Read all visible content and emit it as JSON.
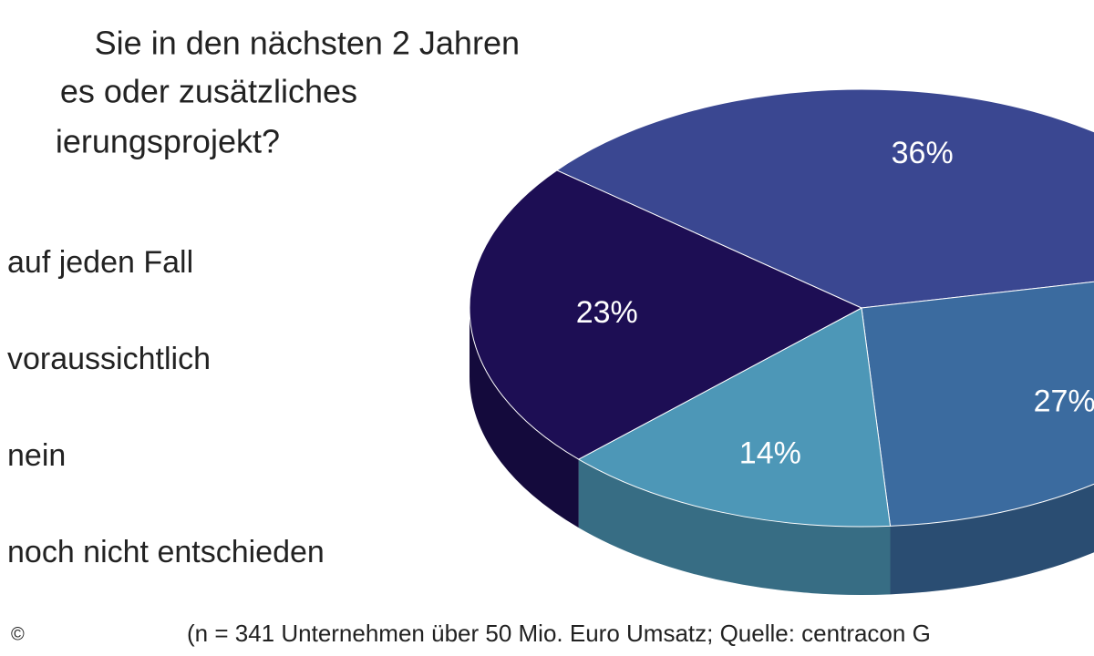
{
  "chart_data": {
    "type": "pie3d",
    "title_lines": [
      "Sie in den nächsten 2 Jahren",
      "es oder zusätzliches",
      "ierungsprojekt?"
    ],
    "categories": [
      "auf jeden Fall",
      "voraussichtlich",
      "nein",
      "noch nicht entschieden"
    ],
    "values": [
      36,
      27,
      14,
      23
    ],
    "value_labels": [
      "36%",
      "27%",
      "14%",
      "23%"
    ],
    "colors": [
      "#3a4791",
      "#3b6b9f",
      "#4d97b7",
      "#1d0e54"
    ],
    "note": "(n = 341 Unternehmen über 50 Mio. Euro Umsatz; Quelle: centracon G",
    "copyright": "©"
  }
}
